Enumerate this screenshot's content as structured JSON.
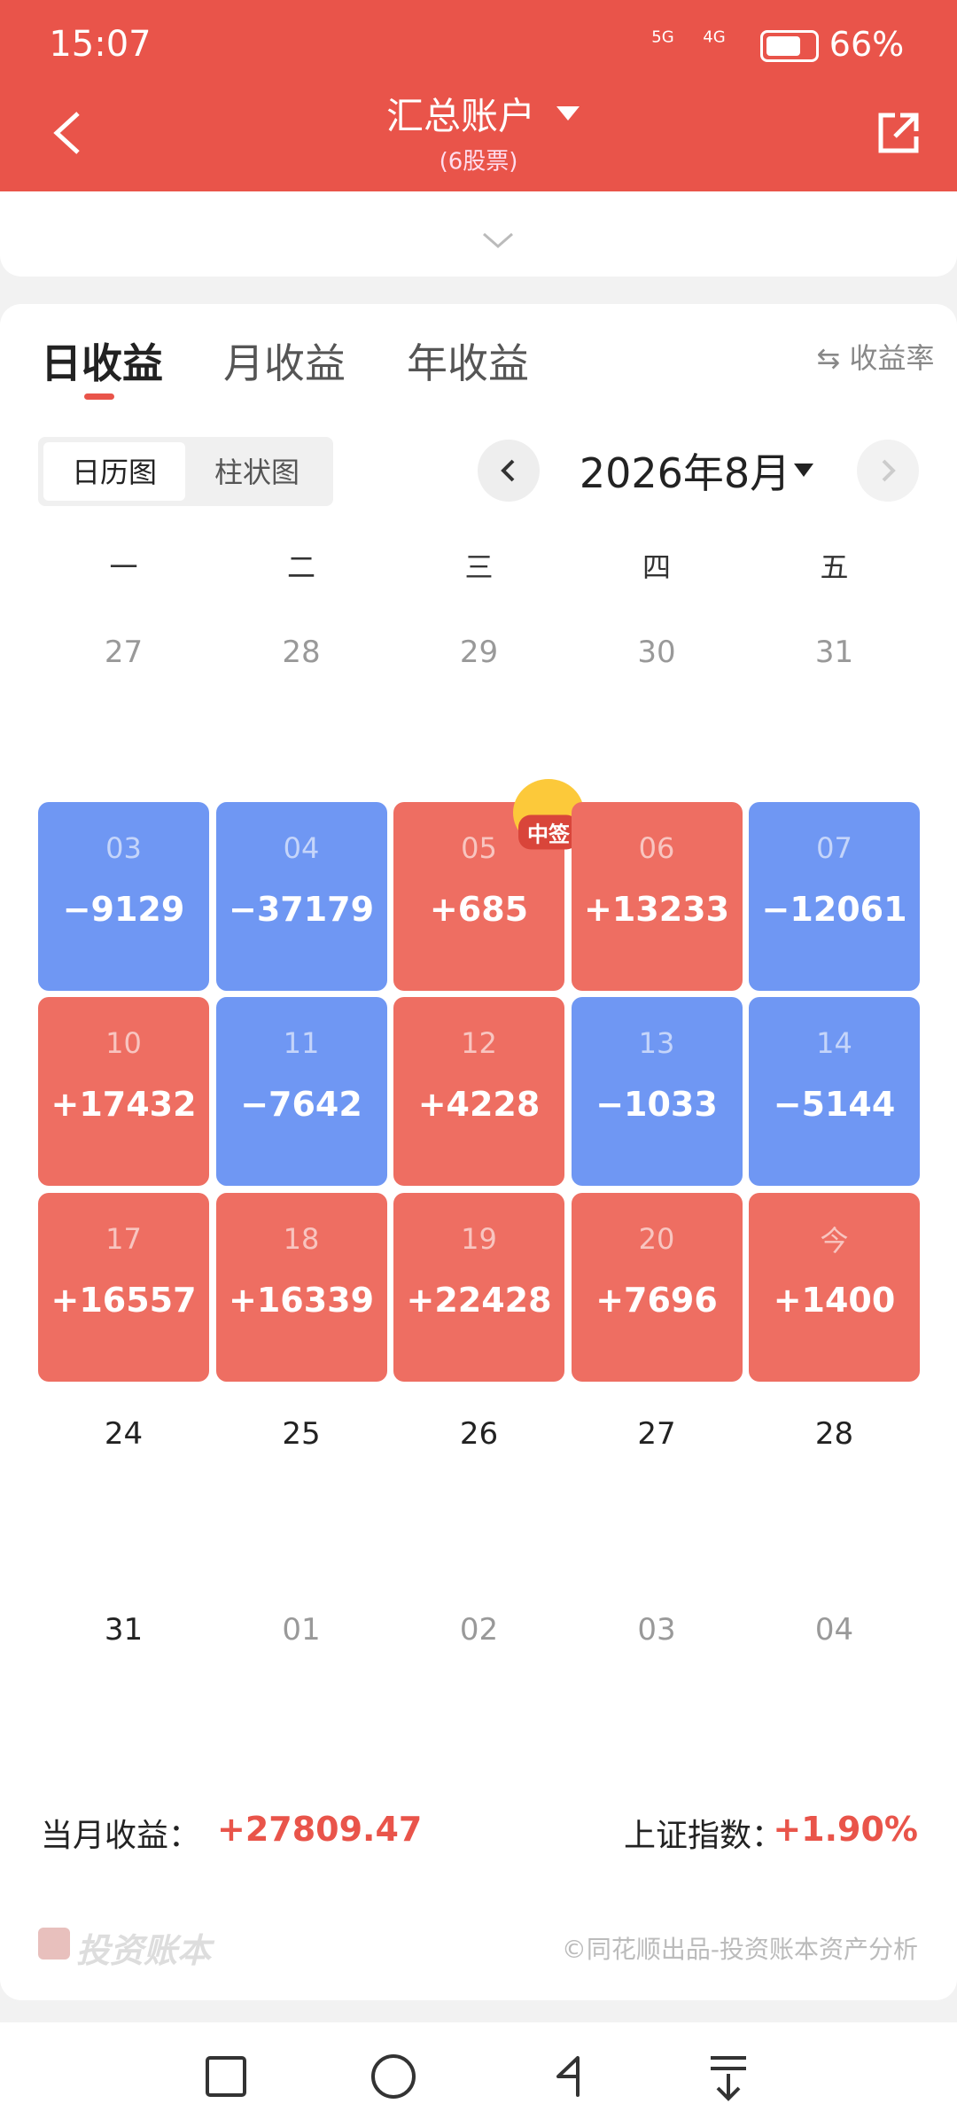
{
  "status_bar": {
    "time": "15:07",
    "network_1": "5G",
    "network_2": "4G",
    "battery": "66%"
  },
  "header": {
    "title": "汇总账户",
    "subtitle": "(6股票)"
  },
  "tabs": {
    "items": [
      "日收益",
      "月收益",
      "年收益"
    ],
    "active": 0,
    "rate_toggle": "收益率"
  },
  "view_toggle": {
    "items": [
      "日历图",
      "柱状图"
    ],
    "active": 0
  },
  "month": "2026年8月",
  "weekdays": [
    "一",
    "二",
    "三",
    "四",
    "五"
  ],
  "weeks": [
    [
      {
        "day": "27",
        "muted": true
      },
      {
        "day": "28",
        "muted": true
      },
      {
        "day": "29",
        "muted": true
      },
      {
        "day": "30",
        "muted": true
      },
      {
        "day": "31",
        "muted": true
      }
    ],
    [
      {
        "day": "03",
        "value": "−9129",
        "color": "#6f97f3"
      },
      {
        "day": "04",
        "value": "−37179",
        "color": "#6f97f3"
      },
      {
        "day": "05",
        "value": "+685",
        "color": "#ee6e62",
        "badge": "中签"
      },
      {
        "day": "06",
        "value": "+13233",
        "color": "#ee6e62"
      },
      {
        "day": "07",
        "value": "−12061",
        "color": "#6f97f3"
      }
    ],
    [
      {
        "day": "10",
        "value": "+17432",
        "color": "#ee6e62"
      },
      {
        "day": "11",
        "value": "−7642",
        "color": "#6f97f3"
      },
      {
        "day": "12",
        "value": "+4228",
        "color": "#ee6e62"
      },
      {
        "day": "13",
        "value": "−1033",
        "color": "#6f97f3"
      },
      {
        "day": "14",
        "value": "−5144",
        "color": "#6f97f3"
      }
    ],
    [
      {
        "day": "17",
        "value": "+16557",
        "color": "#ee6e62"
      },
      {
        "day": "18",
        "value": "+16339",
        "color": "#ee6e62"
      },
      {
        "day": "19",
        "value": "+22428",
        "color": "#ee6e62"
      },
      {
        "day": "20",
        "value": "+7696",
        "color": "#ee6e62"
      },
      {
        "day": "今",
        "value": "+1400",
        "color": "#ee6e62"
      }
    ],
    [
      {
        "day": "24",
        "muted": false
      },
      {
        "day": "25",
        "muted": false
      },
      {
        "day": "26",
        "muted": false
      },
      {
        "day": "27",
        "muted": false
      },
      {
        "day": "28",
        "muted": false
      }
    ],
    [
      {
        "day": "31",
        "muted": false
      },
      {
        "day": "01",
        "muted": true
      },
      {
        "day": "02",
        "muted": true
      },
      {
        "day": "03",
        "muted": true
      },
      {
        "day": "04",
        "muted": true
      }
    ]
  ],
  "summary": {
    "month_label": "当月收益：",
    "month_value": "+27809.47",
    "index_label": "上证指数：",
    "index_value": "+1.90%"
  },
  "footer": {
    "brand": "投资账本",
    "credit": "©同花顺出品-投资账本资产分析"
  }
}
